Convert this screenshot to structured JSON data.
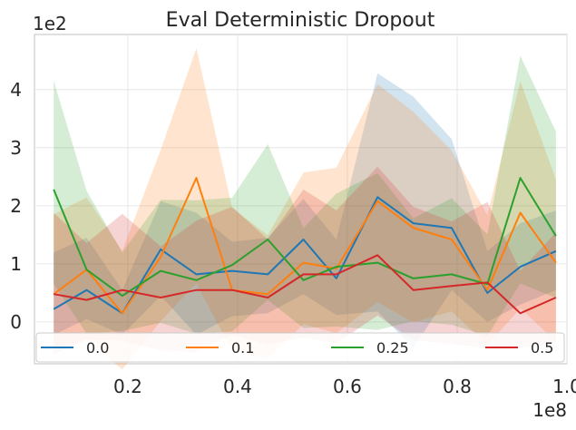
{
  "chart_data": {
    "type": "line",
    "title": "Eval Deterministic Dropout",
    "xlabel": "",
    "ylabel": "",
    "x_multiplier": "1e8",
    "y_multiplier": "1e2",
    "xlim": [
      0.03,
      1.0
    ],
    "ylim": [
      -0.72,
      4.95
    ],
    "xticks": [
      0.2,
      0.4,
      0.6,
      0.8,
      1.0
    ],
    "xtick_labels": [
      "0.2",
      "0.4",
      "0.6",
      "0.8",
      "1.0"
    ],
    "yticks": [
      0,
      1,
      2,
      3,
      4
    ],
    "ytick_labels": [
      "0",
      "1",
      "2",
      "3",
      "4"
    ],
    "grid": true,
    "legend_position": "bottom",
    "x": [
      0.065,
      0.125,
      0.19,
      0.26,
      0.325,
      0.39,
      0.455,
      0.52,
      0.58,
      0.655,
      0.72,
      0.79,
      0.855,
      0.915,
      0.98
    ],
    "series": [
      {
        "name": "0.0",
        "color": "#1f77b4",
        "values": [
          0.22,
          0.55,
          0.15,
          1.25,
          0.82,
          0.88,
          0.82,
          1.42,
          0.75,
          2.15,
          1.7,
          1.62,
          0.5,
          0.95,
          1.22
        ],
        "upper": [
          1.2,
          1.45,
          0.55,
          2.08,
          1.88,
          1.38,
          1.45,
          2.12,
          1.42,
          4.28,
          3.88,
          3.15,
          1.22,
          1.7,
          1.92
        ],
        "lower": [
          -0.22,
          0.05,
          -0.22,
          0.45,
          -0.22,
          0.1,
          0.15,
          0.48,
          0.12,
          0.18,
          -0.45,
          0.55,
          0.0,
          0.3,
          0.55
        ]
      },
      {
        "name": "0.1",
        "color": "#ff7f0e",
        "values": [
          0.48,
          0.9,
          0.15,
          1.12,
          2.48,
          0.55,
          0.48,
          1.02,
          0.92,
          2.08,
          1.62,
          1.42,
          0.55,
          1.88,
          1.02
        ]
      },
      {
        "name": "0.25",
        "color": "#2ca02c",
        "values": [
          2.28,
          0.9,
          0.45,
          0.88,
          0.72,
          0.98,
          1.42,
          0.72,
          0.95,
          1.02,
          0.75,
          0.82,
          0.65,
          2.48,
          1.48
        ]
      },
      {
        "name": "0.5",
        "color": "#d62728",
        "values": [
          0.48,
          0.38,
          0.55,
          0.42,
          0.55,
          0.55,
          0.42,
          0.82,
          0.82,
          1.15,
          0.55,
          0.62,
          0.68,
          0.15,
          0.42
        ]
      }
    ]
  }
}
